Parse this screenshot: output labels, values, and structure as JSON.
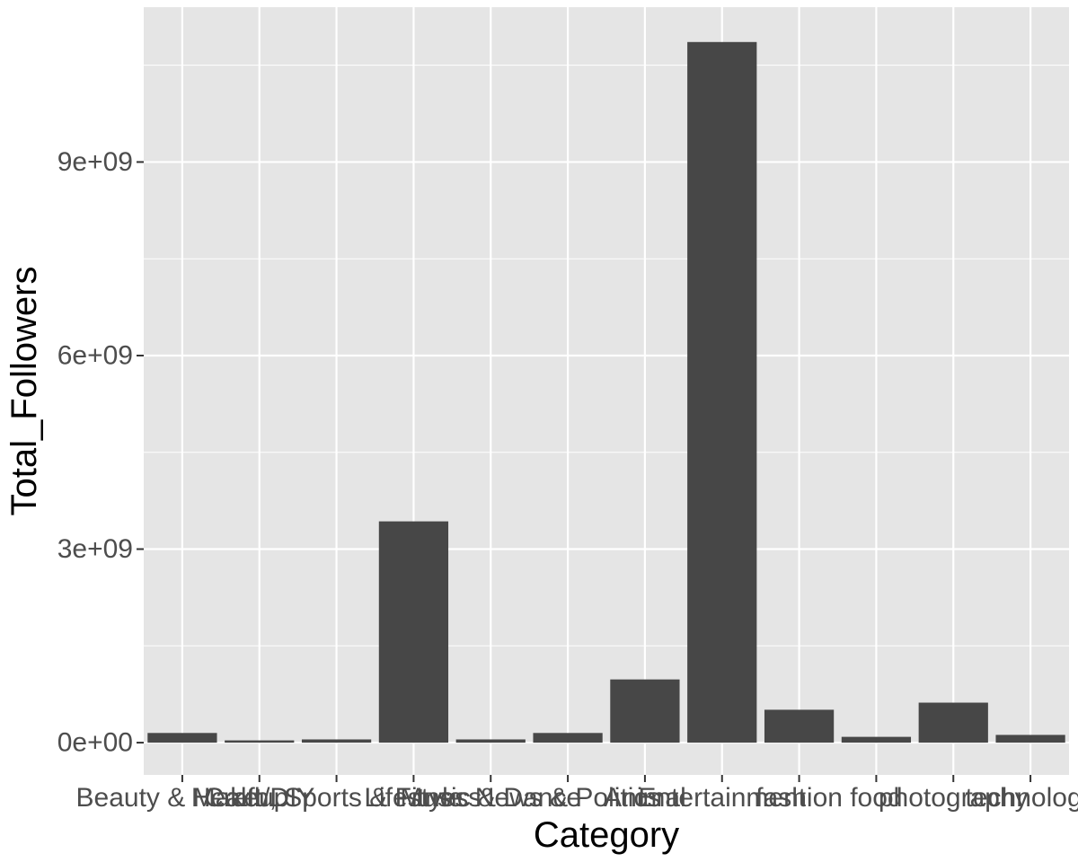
{
  "chart_data": {
    "type": "bar",
    "xlabel": "Category",
    "ylabel": "Total_Followers",
    "categories": [
      "Beauty & Makeup",
      "Craft/DIY",
      "Health, Sports & Fitness",
      "Lifestyle",
      "Music & Dance",
      "News & Politics",
      "Animal",
      "Entertainment",
      "fashion",
      "food",
      "photography",
      "technology"
    ],
    "values": [
      150000000,
      35000000,
      50000000,
      3430000000,
      50000000,
      150000000,
      980000000,
      10860000000,
      510000000,
      90000000,
      620000000,
      120000000
    ],
    "y_ticks": [
      0,
      3000000000,
      6000000000,
      9000000000
    ],
    "y_tick_labels": [
      "0e+00",
      "3e+09",
      "6e+09",
      "9e+09"
    ],
    "ylim": [
      -500000000,
      11400000000
    ],
    "grid": true,
    "legend": "none",
    "colors": {
      "panel": "#e5e5e5",
      "grid": "#ffffff",
      "bar": "#474747",
      "tick": "#333333"
    }
  }
}
